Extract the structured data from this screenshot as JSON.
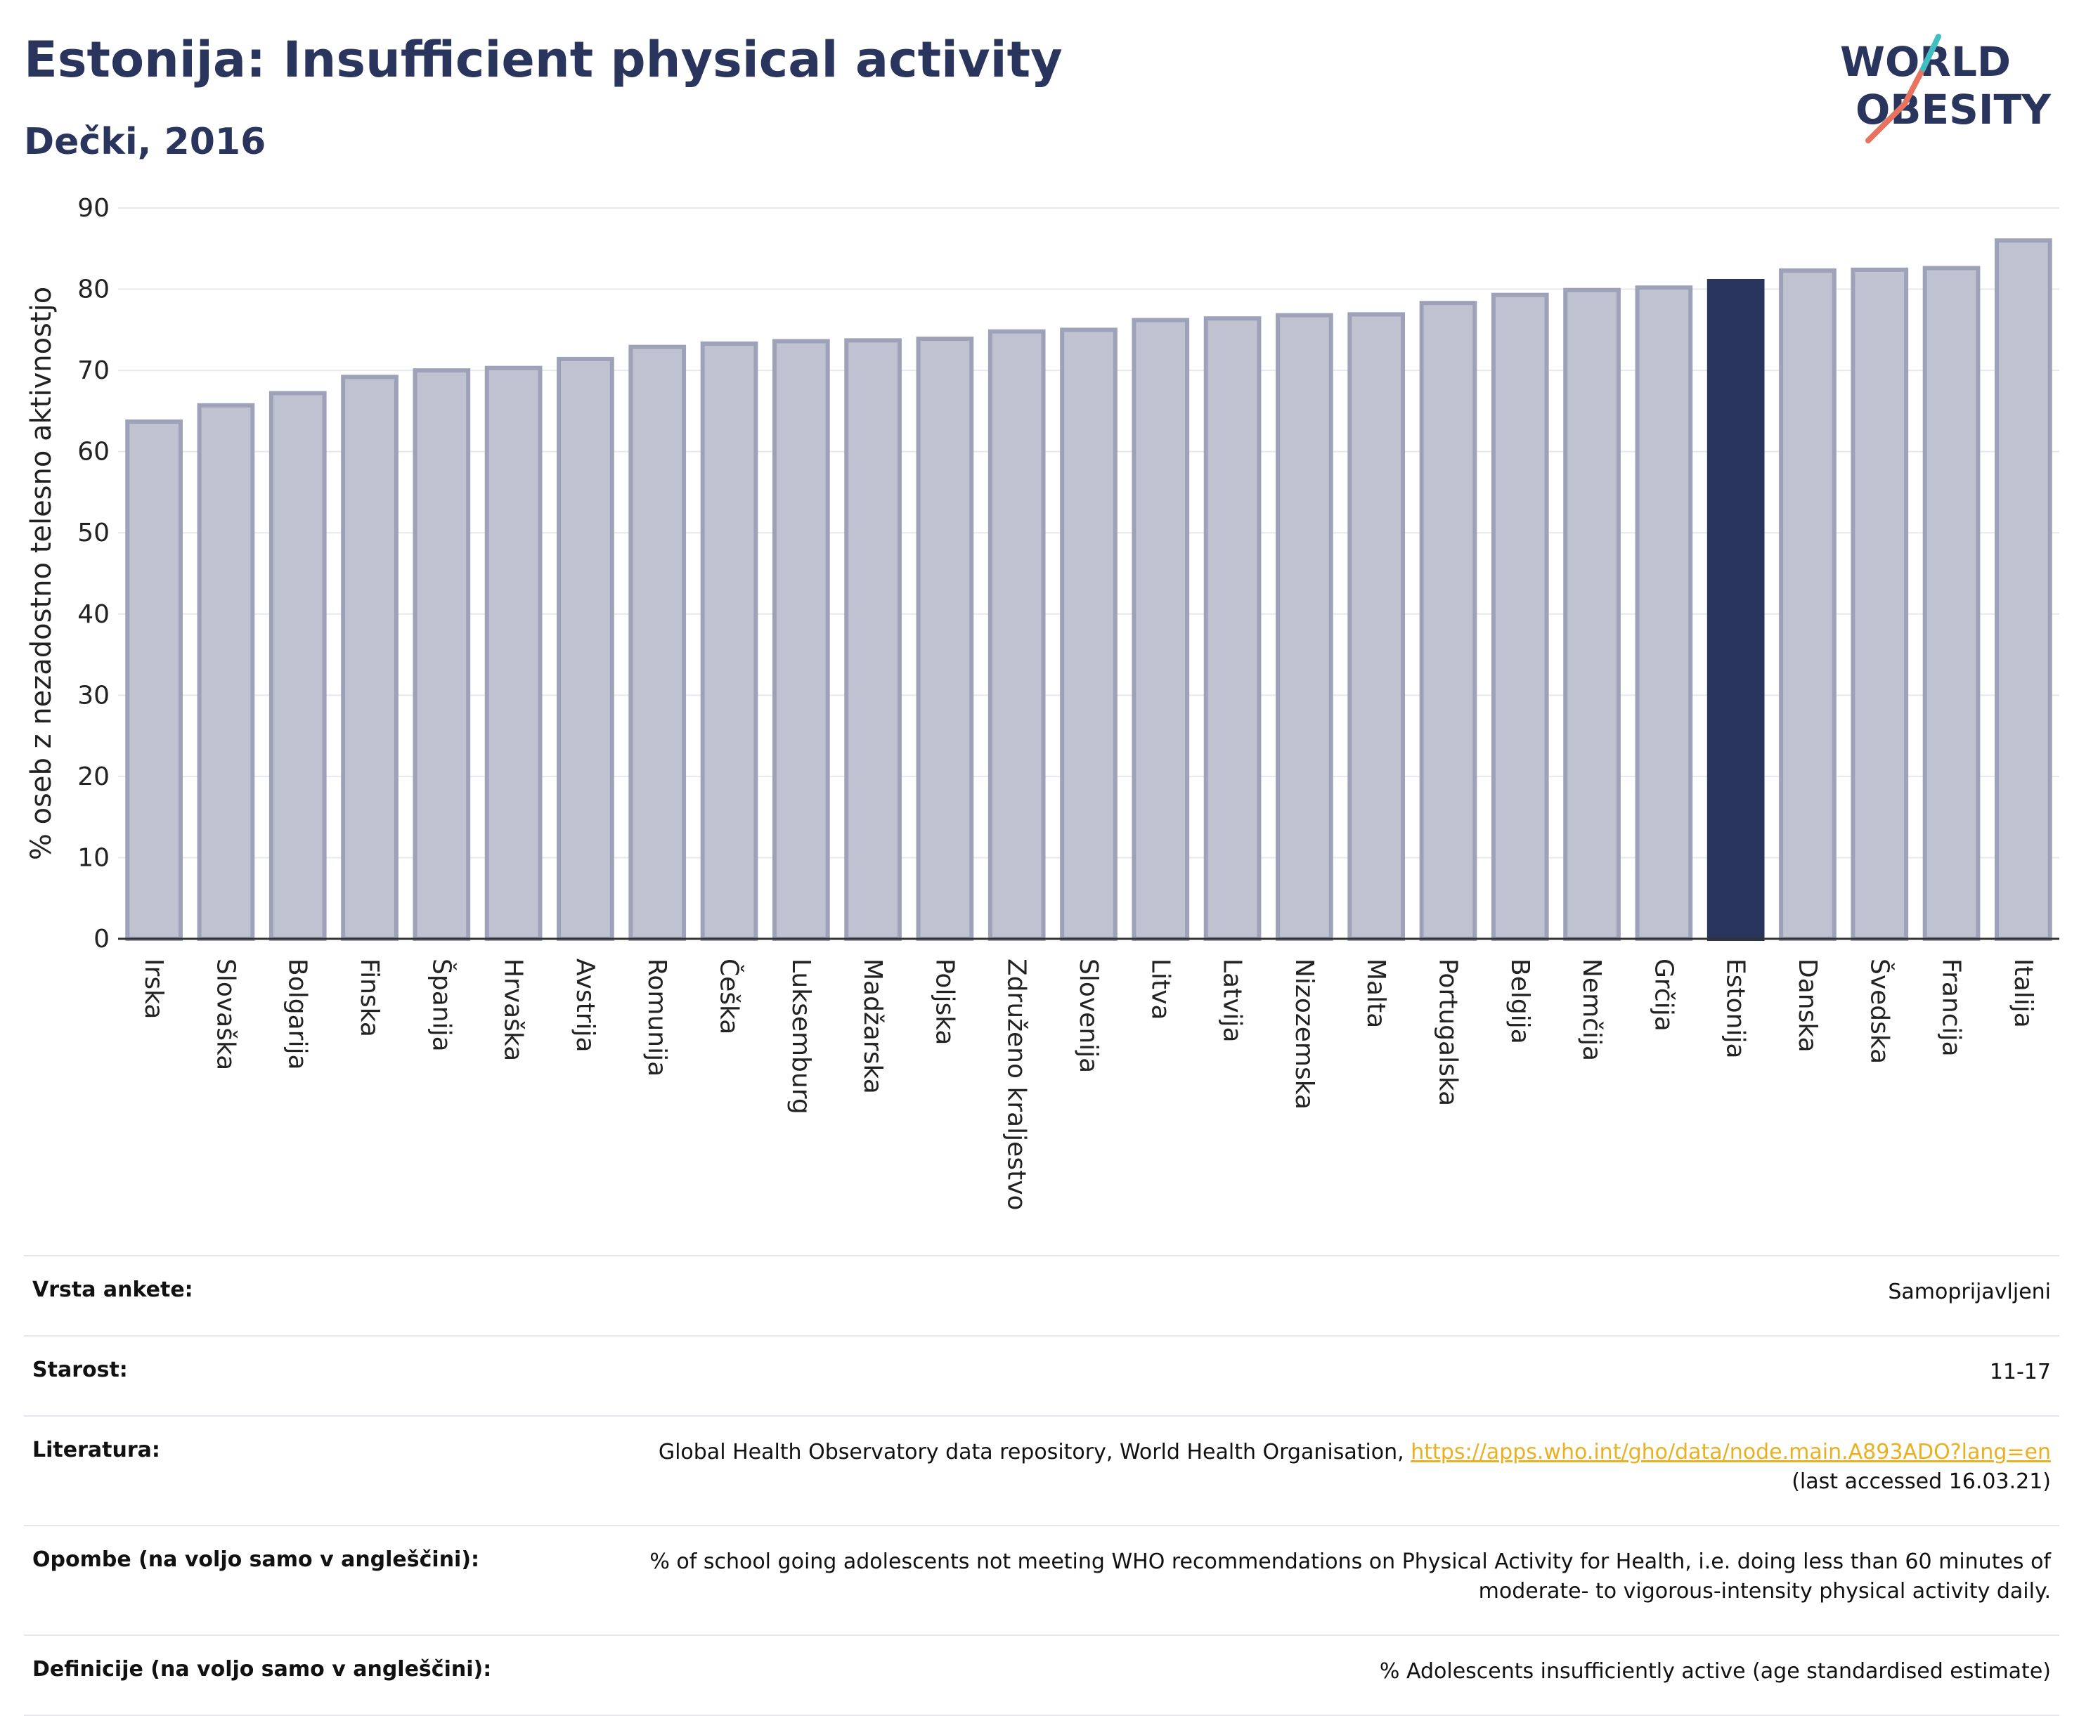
{
  "header": {
    "title": "Estonija: Insufficient physical activity",
    "subtitle": "Dečki, 2016"
  },
  "logo": {
    "line1": "WORLD",
    "line2": "OBESITY"
  },
  "colors": {
    "highlight": "#2a355e",
    "bar_fill": "#bfc2d0",
    "bar_stroke": "#9da2b9",
    "grid": "#e6e8ee",
    "logo_teal": "#3fbfbf",
    "logo_coral": "#e8735e"
  },
  "chart_data": {
    "type": "bar",
    "ylabel": "% oseb z nezadostno telesno aktivnostjo",
    "ylim": [
      0,
      90
    ],
    "yticks": [
      0,
      10,
      20,
      30,
      40,
      50,
      60,
      70,
      80,
      90
    ],
    "grid": true,
    "highlight": "Estonija",
    "categories": [
      "Irska",
      "Slovaška",
      "Bolgarija",
      "Finska",
      "Španija",
      "Hrvaška",
      "Avstrija",
      "Romunija",
      "Češka",
      "Luksemburg",
      "Madžarska",
      "Poljska",
      "Združeno kraljestvo",
      "Slovenija",
      "Litva",
      "Latvija",
      "Nizozemska",
      "Malta",
      "Portugalska",
      "Belgija",
      "Nemčija",
      "Grčija",
      "Estonija",
      "Danska",
      "Švedska",
      "Francija",
      "Italija"
    ],
    "values": [
      63.7,
      65.7,
      67.2,
      69.2,
      70.0,
      70.3,
      71.4,
      72.9,
      73.3,
      73.6,
      73.7,
      73.9,
      74.8,
      75.0,
      76.2,
      76.4,
      76.8,
      76.9,
      78.3,
      79.3,
      79.9,
      80.2,
      81.0,
      82.3,
      82.4,
      82.6,
      86.0
    ]
  },
  "meta": [
    {
      "key": "Vrsta ankete:",
      "value": "Samoprijavljeni"
    },
    {
      "key": "Starost:",
      "value": "11-17"
    },
    {
      "key": "Literatura:",
      "value": "Global Health Observatory data repository, World Health Organisation,",
      "link": "https://apps.who.int/gho/data/node.main.A893ADO?lang=en",
      "value2": "(last accessed 16.03.21)"
    },
    {
      "key": "Opombe (na voljo samo v angleščini):",
      "value": "% of school going adolescents not meeting WHO recommendations on Physical Activity for Health, i.e. doing less than 60 minutes of",
      "value2": "moderate- to vigorous-intensity physical activity daily."
    },
    {
      "key": "Definicije (na voljo samo v angleščini):",
      "value": "% Adolescents insufficiently active (age standardised estimate)"
    }
  ]
}
